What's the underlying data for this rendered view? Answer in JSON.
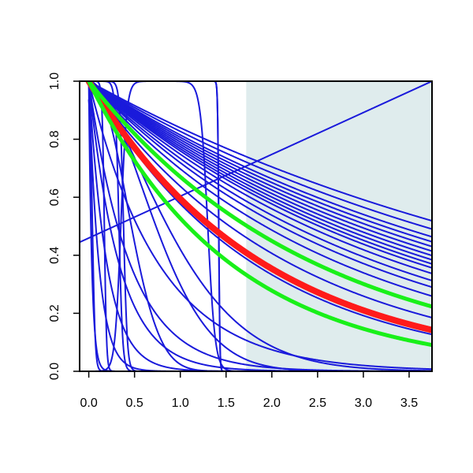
{
  "chart_data": {
    "type": "line",
    "title": "",
    "xlabel": "",
    "ylabel": "",
    "xlim": [
      -0.1,
      3.75
    ],
    "ylim": [
      0,
      1
    ],
    "x_ticks": [
      "0.0",
      "0.5",
      "1.0",
      "1.5",
      "2.0",
      "2.5",
      "3.0",
      "3.5"
    ],
    "y_ticks": [
      "0.0",
      "0.2",
      "0.4",
      "0.6",
      "0.8",
      "1.0"
    ],
    "grid": false,
    "legend": "none",
    "shaded_region": {
      "x_from": 1.72,
      "x_to": 3.75,
      "color": "#dfeced"
    },
    "colors": {
      "blue": "#1a1adb",
      "red": "#ff1a1a",
      "green": "#19f019",
      "frame": "#000000"
    },
    "series_families": {
      "note": "Each curve is y(x) sampled on the x grid below; values read off the axes.",
      "x_grid": [
        0,
        0.25,
        0.5,
        0.75,
        1.0,
        1.25,
        1.5,
        1.75,
        2.0,
        2.25,
        2.5,
        2.75,
        3.0,
        3.25,
        3.5,
        3.75
      ]
    },
    "series": [
      {
        "color": "red",
        "width": 8,
        "kind": "exp",
        "rate": 0.52
      },
      {
        "color": "green",
        "width": 5,
        "kind": "exp",
        "rate": 0.4
      },
      {
        "color": "green",
        "width": 5,
        "kind": "exp",
        "rate": 0.64
      },
      {
        "color": "blue",
        "width": 2,
        "kind": "exp",
        "rate": 0.175
      },
      {
        "color": "blue",
        "width": 2,
        "kind": "exp",
        "rate": 0.19
      },
      {
        "color": "blue",
        "width": 2,
        "kind": "exp",
        "rate": 0.205
      },
      {
        "color": "blue",
        "width": 2,
        "kind": "exp",
        "rate": 0.215
      },
      {
        "color": "blue",
        "width": 2,
        "kind": "exp",
        "rate": 0.225
      },
      {
        "color": "blue",
        "width": 2,
        "kind": "exp",
        "rate": 0.235
      },
      {
        "color": "blue",
        "width": 2,
        "kind": "exp",
        "rate": 0.245
      },
      {
        "color": "blue",
        "width": 2,
        "kind": "exp",
        "rate": 0.255
      },
      {
        "color": "blue",
        "width": 2,
        "kind": "exp",
        "rate": 0.265
      },
      {
        "color": "blue",
        "width": 2,
        "kind": "exp",
        "rate": 0.275
      },
      {
        "color": "blue",
        "width": 2,
        "kind": "exp",
        "rate": 0.29
      },
      {
        "color": "blue",
        "width": 2,
        "kind": "exp",
        "rate": 0.31
      },
      {
        "color": "blue",
        "width": 2,
        "kind": "exp",
        "rate": 0.33
      },
      {
        "color": "blue",
        "width": 2,
        "kind": "exp",
        "rate": 0.36
      },
      {
        "color": "blue",
        "width": 2,
        "kind": "exp",
        "rate": 0.45
      },
      {
        "color": "blue",
        "width": 2,
        "kind": "exp",
        "rate": 0.55
      },
      {
        "color": "blue",
        "width": 2,
        "kind": "exp",
        "rate": 1.3
      },
      {
        "color": "blue",
        "width": 2,
        "kind": "exp",
        "rate": 2.2
      },
      {
        "color": "blue",
        "width": 2,
        "kind": "exp",
        "rate": 3.0
      },
      {
        "color": "blue",
        "width": 2,
        "kind": "exp",
        "rate": 5.0
      },
      {
        "color": "blue",
        "width": 2,
        "kind": "exp",
        "rate": 9.0
      },
      {
        "color": "blue",
        "width": 2,
        "kind": "exp",
        "rate": 30.0
      },
      {
        "color": "blue",
        "width": 2,
        "kind": "weibull",
        "scale": 0.55,
        "shape": 2.2
      },
      {
        "color": "blue",
        "width": 2,
        "kind": "weibull",
        "scale": 0.9,
        "shape": 1.8
      },
      {
        "color": "blue",
        "width": 2,
        "kind": "weibull",
        "scale": 1.1,
        "shape": 1.5
      },
      {
        "color": "blue",
        "width": 2,
        "kind": "step",
        "center": 0.04,
        "width_param": 0.015
      },
      {
        "color": "blue",
        "width": 2,
        "kind": "step",
        "center": 0.17,
        "width_param": 0.012
      },
      {
        "color": "blue",
        "width": 2,
        "kind": "step",
        "center": 0.33,
        "width_param": 0.02
      },
      {
        "color": "blue",
        "width": 2,
        "kind": "step",
        "center": 0.38,
        "width_param": 0.02
      },
      {
        "color": "blue",
        "width": 2,
        "kind": "step",
        "center": 1.3,
        "width_param": 0.04
      },
      {
        "color": "blue",
        "width": 2,
        "kind": "step",
        "center": 1.42,
        "width_param": 0.006
      },
      {
        "color": "blue",
        "width": 2,
        "kind": "plateau",
        "start": 0.35,
        "end": 1.42,
        "edge": 0.08
      },
      {
        "color": "blue",
        "width": 2,
        "kind": "linear",
        "y0": 0.445,
        "y1": 1.0
      }
    ]
  }
}
